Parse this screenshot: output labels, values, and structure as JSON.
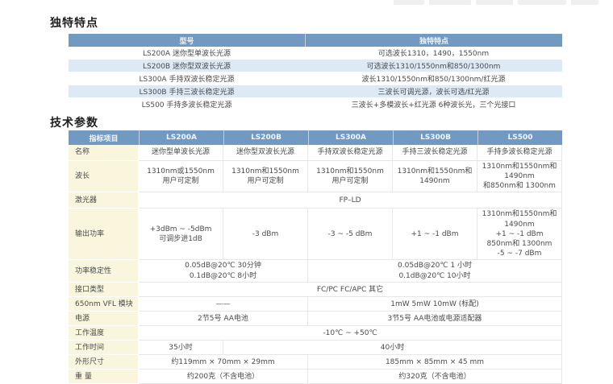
{
  "colors": {
    "header_bg": "#7199c2",
    "header_text": "#f2f6fb",
    "alt_row_bg": "#ddeaf6",
    "label_bg": "#faf6dd",
    "text": "#4a4a4a",
    "grid": "#e7e7e7"
  },
  "features": {
    "title": "独特特点",
    "headers": [
      "型号",
      "独特特点"
    ],
    "rows": [
      {
        "model": "LS200A 迷你型单波长光源",
        "feature": "可选波长1310，1490，1550nm"
      },
      {
        "model": "LS200B 迷你型双波长光源",
        "feature": "可选波长1310/1550nm和850/1300nm"
      },
      {
        "model": "LS300A 手持双波长稳定光源",
        "feature": "波长1310/1550nm和850/1300nm/红光源"
      },
      {
        "model": "LS300B 手持三波长稳定光源",
        "feature": "三波长可调光源，波长可选/红光源"
      },
      {
        "model": "LS500 手持多波长稳定光源",
        "feature": "三波长+多模波长+红光源 6种波长光，三个光接口"
      }
    ]
  },
  "specs": {
    "title": "技术参数",
    "headers": [
      "指标项目",
      "LS200A",
      "LS200B",
      "LS300A",
      "LS300B",
      "LS500"
    ],
    "rows": {
      "name": {
        "label": "名称",
        "c1": "迷你型单波长光源",
        "c2": "迷你型双波长光源",
        "c3": "手持双波长稳定光源",
        "c4": "手持三波长稳定光源",
        "c5": "手持多波长稳定光源"
      },
      "wavelength": {
        "label": "波长",
        "c1": "1310nm或1550nm\n用户可定制",
        "c2": "1310nm和1550nm\n用户可定制",
        "c3": "1310nm和1550nm\n用户可定制",
        "c4": "1310nm和1550nm和1490nm",
        "c5": "1310nm和1550nm和1490nm\n和850nm和 1300nm"
      },
      "laser": {
        "label": "激光器",
        "all": "FP–LD"
      },
      "output_power": {
        "label": "输出功率",
        "c1": "+3dBm ~ -5dBm\n可调步进1dB",
        "c2": "-3 dBm",
        "c3": "-3 ~ -5 dBm",
        "c4": "+1 ~ -1 dBm",
        "c5": "1310nm和1550nm和1490nm\n+1 ~ -1 dBm\n850nm和 1300nm\n-5 ~ -7 dBm"
      },
      "stability": {
        "label": "功率稳定性",
        "left": "0.05dB@20℃ 30分钟\n0.1dB@20℃  8小时",
        "right": "0.05dB@20℃  1 小时\n0.1dB@20℃  10小时"
      },
      "connector": {
        "label": "接口类型",
        "all": "FC/PC  FC/APC 其它"
      },
      "vfl": {
        "label": "650nm VFL 模块",
        "left": "——",
        "right": "1mW  5mW  10mW (标配)"
      },
      "power_supply": {
        "label": "电源",
        "left": "2节5号 AA电池",
        "right": "3节5号 AA电池或电源适配器"
      },
      "temperature": {
        "label": "工作温度",
        "all": "-10℃ ~ +50℃"
      },
      "runtime": {
        "label": "工作时间",
        "c1": "35小时",
        "rest": "40小时"
      },
      "dimensions": {
        "label": "外形尺寸",
        "left": "约119mm × 70mm × 29mm",
        "right": "185mm × 85mm × 45 mm"
      },
      "weight": {
        "label": "重 量",
        "left": "约200克（不含电池）",
        "right": "约320克（不含电池）"
      }
    }
  }
}
